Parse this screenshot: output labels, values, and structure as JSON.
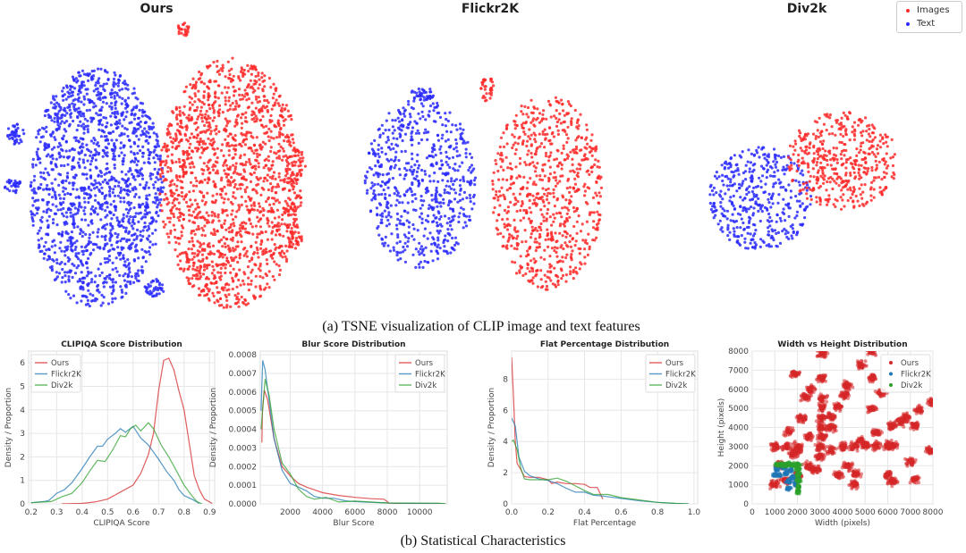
{
  "figure": {
    "caption_a": "(a) TSNE visualization of CLIP image and text features",
    "caption_b": "(b) Statistical Characteristics"
  },
  "colors": {
    "images": "#ff2a2a",
    "text": "#2a2aff",
    "ours": "#d62728",
    "flickr2k": "#1f77b4",
    "div2k": "#2ca02c"
  },
  "tsne": {
    "panels": [
      {
        "title": "Ours"
      },
      {
        "title": "Flickr2K"
      },
      {
        "title": "Div2k"
      }
    ],
    "legend": [
      {
        "label": "Images",
        "color": "#ff2a2a"
      },
      {
        "label": "Text",
        "color": "#2a2aff"
      }
    ]
  },
  "chart_data": [
    {
      "type": "scatter",
      "title": "Ours",
      "subtitle": "TSNE",
      "series": [
        {
          "name": "Images"
        },
        {
          "name": "Text"
        }
      ]
    },
    {
      "type": "scatter",
      "title": "Flickr2K",
      "series": [
        {
          "name": "Images"
        },
        {
          "name": "Text"
        }
      ]
    },
    {
      "type": "scatter",
      "title": "Div2k",
      "series": [
        {
          "name": "Images"
        },
        {
          "name": "Text"
        }
      ],
      "legend": "top-right"
    },
    {
      "type": "line",
      "title": "CLIPIQA Score Distribution",
      "xlabel": "CLIPIQA Score",
      "ylabel": "Density / Proportion",
      "xlim": [
        0.19,
        0.92
      ],
      "ylim": [
        0,
        6.5
      ],
      "xticks": [
        "0.2",
        "0.3",
        "0.4",
        "0.5",
        "0.6",
        "0.7",
        "0.8",
        "0.9"
      ],
      "yticks": [
        "0",
        "1",
        "2",
        "3",
        "4",
        "5",
        "6"
      ],
      "grid": true,
      "legend": "top-left",
      "series": [
        {
          "name": "Ours",
          "color": "#d62728",
          "x": [
            0.32,
            0.4,
            0.45,
            0.5,
            0.55,
            0.6,
            0.63,
            0.66,
            0.68,
            0.7,
            0.72,
            0.74,
            0.76,
            0.78,
            0.8,
            0.82,
            0.84,
            0.86,
            0.88,
            0.91
          ],
          "y": [
            0,
            0.02,
            0.08,
            0.2,
            0.5,
            0.8,
            1.3,
            2.1,
            3.0,
            4.8,
            6.1,
            6.2,
            5.7,
            4.8,
            4.0,
            2.6,
            1.2,
            0.6,
            0.2,
            0.02
          ]
        },
        {
          "name": "Flickr2K",
          "color": "#1f77b4",
          "x": [
            0.2,
            0.25,
            0.27,
            0.3,
            0.33,
            0.36,
            0.4,
            0.43,
            0.46,
            0.48,
            0.5,
            0.53,
            0.55,
            0.57,
            0.6,
            0.63,
            0.66,
            0.7,
            0.73,
            0.76,
            0.78,
            0.8,
            0.83,
            0.86
          ],
          "y": [
            0.05,
            0.1,
            0.15,
            0.45,
            0.6,
            0.9,
            1.5,
            2.0,
            2.45,
            2.45,
            2.75,
            3.0,
            3.2,
            3.05,
            3.3,
            2.8,
            2.5,
            1.9,
            1.4,
            1.0,
            0.6,
            0.35,
            0.2,
            0.02
          ]
        },
        {
          "name": "Div2k",
          "color": "#2ca02c",
          "x": [
            0.2,
            0.25,
            0.28,
            0.32,
            0.36,
            0.4,
            0.43,
            0.46,
            0.49,
            0.52,
            0.55,
            0.57,
            0.59,
            0.61,
            0.63,
            0.66,
            0.68,
            0.71,
            0.74,
            0.77,
            0.8,
            0.83,
            0.85,
            0.87
          ],
          "y": [
            0.05,
            0.08,
            0.1,
            0.3,
            0.45,
            0.9,
            1.4,
            1.85,
            1.8,
            2.3,
            2.9,
            2.85,
            3.2,
            3.35,
            3.1,
            3.45,
            3.2,
            2.5,
            2.0,
            1.4,
            0.8,
            0.35,
            0.1,
            0.0
          ]
        }
      ]
    },
    {
      "type": "line",
      "title": "Blur Score Distribution",
      "xlabel": "Blur Score",
      "ylabel": "Density / Proportion",
      "xlim": [
        150,
        11700
      ],
      "ylim": [
        0,
        0.00082
      ],
      "xticks": [
        "2000",
        "4000",
        "6000",
        "8000",
        "10000"
      ],
      "yticks": [
        "0.0000",
        "0.0001",
        "0.0002",
        "0.0003",
        "0.0004",
        "0.0005",
        "0.0006",
        "0.0007",
        "0.0008"
      ],
      "grid": true,
      "legend": "top-right",
      "series": [
        {
          "name": "Ours",
          "color": "#d62728",
          "x": [
            250,
            280,
            400,
            600,
            1000,
            1500,
            2000,
            2500,
            3000,
            4000,
            5000,
            6000,
            7000,
            7800,
            8100,
            9000,
            11600
          ],
          "y": [
            0.00033,
            0.0005,
            0.00061,
            0.00056,
            0.00035,
            0.0002,
            0.00015,
            0.00011,
            9e-05,
            6e-05,
            4.5e-05,
            3.5e-05,
            2.8e-05,
            2.5e-05,
            5e-06,
            0,
            0
          ]
        },
        {
          "name": "Flickr2K",
          "color": "#1f77b4",
          "x": [
            200,
            300,
            450,
            700,
            1000,
            1500,
            2000,
            2500,
            3000,
            3500,
            4000,
            4700,
            5500,
            6500,
            8000,
            11600
          ],
          "y": [
            0.0005,
            0.00077,
            0.00072,
            0.00055,
            0.00035,
            0.00018,
            0.00011,
            9e-05,
            7e-05,
            4e-05,
            3e-05,
            3e-05,
            1.5e-05,
            1e-05,
            5e-06,
            0
          ]
        },
        {
          "name": "Div2k",
          "color": "#2ca02c",
          "x": [
            200,
            450,
            700,
            1000,
            1500,
            2000,
            2500,
            3000,
            3500,
            4200,
            5000,
            6000,
            8000,
            11200,
            11600
          ],
          "y": [
            0.0004,
            0.00067,
            0.00058,
            0.0004,
            0.00022,
            0.00016,
            8e-05,
            4e-05,
            2.5e-05,
            3.5e-05,
            1e-05,
            1.5e-05,
            5e-06,
            4e-06,
            0
          ]
        }
      ]
    },
    {
      "type": "line",
      "title": "Flat Percentage Distribution",
      "xlabel": "Flat Percentage",
      "ylabel": "Density / Proportion",
      "xlim": [
        0,
        1.02
      ],
      "ylim": [
        0,
        9.8
      ],
      "xticks": [
        "0.0",
        "0.2",
        "0.4",
        "0.6",
        "0.8",
        "1.0"
      ],
      "yticks": [
        "0",
        "2",
        "4",
        "6",
        "8"
      ],
      "grid": true,
      "legend": "top-right",
      "series": [
        {
          "name": "Ours",
          "color": "#d62728",
          "x": [
            0,
            0.01,
            0.02,
            0.03,
            0.05,
            0.07,
            0.1,
            0.15,
            0.2,
            0.22,
            0.25,
            0.3,
            0.35,
            0.4,
            0.43,
            0.47,
            0.5
          ],
          "y": [
            9.4,
            7.0,
            4.0,
            2.6,
            2.2,
            1.75,
            1.7,
            1.7,
            1.55,
            1.3,
            1.4,
            1.3,
            1.3,
            1.25,
            1.05,
            1.05,
            0.3
          ]
        },
        {
          "name": "Flickr2K",
          "color": "#1f77b4",
          "x": [
            0,
            0.02,
            0.04,
            0.07,
            0.1,
            0.15,
            0.2,
            0.25,
            0.3,
            0.35,
            0.4,
            0.45,
            0.5,
            0.6,
            0.7,
            0.8,
            0.9,
            0.97
          ],
          "y": [
            5.5,
            5.0,
            3.0,
            2.1,
            1.8,
            1.6,
            1.5,
            1.3,
            1.0,
            0.75,
            0.75,
            0.55,
            0.5,
            0.35,
            0.2,
            0.1,
            0.03,
            0
          ]
        },
        {
          "name": "Div2k",
          "color": "#2ca02c",
          "x": [
            0,
            0.01,
            0.03,
            0.05,
            0.07,
            0.1,
            0.15,
            0.2,
            0.25,
            0.3,
            0.35,
            0.4,
            0.45,
            0.5,
            0.53,
            0.6,
            0.7,
            0.8,
            0.9,
            0.97
          ],
          "y": [
            4.0,
            4.1,
            3.5,
            2.3,
            1.6,
            1.55,
            1.55,
            1.55,
            1.65,
            1.45,
            1.15,
            0.85,
            0.6,
            0.6,
            0.6,
            0.4,
            0.25,
            0.1,
            0.03,
            0
          ]
        }
      ]
    },
    {
      "type": "scatter",
      "title": "Width vs Height Distribution",
      "xlabel": "Width (pixels)",
      "ylabel": "Height (pixels)",
      "xlim": [
        0,
        8000
      ],
      "ylim": [
        0,
        8000
      ],
      "xticks": [
        "0",
        "1000",
        "2000",
        "3000",
        "4000",
        "5000",
        "6000",
        "7000",
        "8000"
      ],
      "yticks": [
        "0",
        "1000",
        "2000",
        "3000",
        "4000",
        "5000",
        "6000",
        "7000",
        "8000"
      ],
      "grid": true,
      "legend": "top-right",
      "series": [
        {
          "name": "Ours",
          "color": "#d62728",
          "points": [
            [
              1000,
              1000
            ],
            [
              1500,
              1200
            ],
            [
              2000,
              1500
            ],
            [
              2500,
              2000
            ],
            [
              3000,
              2500
            ],
            [
              2000,
              2800
            ],
            [
              2500,
              3500
            ],
            [
              1200,
              2000
            ],
            [
              1800,
              2600
            ],
            [
              3000,
              3000
            ],
            [
              3500,
              2800
            ],
            [
              4000,
              3000
            ],
            [
              4500,
              3000
            ],
            [
              5000,
              3050
            ],
            [
              5500,
              3050
            ],
            [
              6000,
              3050
            ],
            [
              6200,
              3050
            ],
            [
              1000,
              3000
            ],
            [
              1500,
              3000
            ],
            [
              2000,
              3000
            ],
            [
              3100,
              3500
            ],
            [
              3100,
              4000
            ],
            [
              3100,
              4500
            ],
            [
              3100,
              5000
            ],
            [
              3100,
              5500
            ],
            [
              3500,
              4600
            ],
            [
              3800,
              5100
            ],
            [
              4100,
              5700
            ],
            [
              4200,
              6200
            ],
            [
              4800,
              3300
            ],
            [
              5500,
              3700
            ],
            [
              6200,
              4100
            ],
            [
              6800,
              4500
            ],
            [
              7400,
              4900
            ],
            [
              8000,
              5300
            ],
            [
              1900,
              6800
            ],
            [
              3100,
              6600
            ],
            [
              5300,
              8000
            ],
            [
              3100,
              7900
            ],
            [
              4800,
              7300
            ],
            [
              5300,
              6600
            ],
            [
              5700,
              5800
            ],
            [
              6600,
              4300
            ],
            [
              7200,
              4100
            ],
            [
              7900,
              2800
            ],
            [
              6200,
              1200
            ],
            [
              6000,
              1500
            ],
            [
              7200,
              1300
            ],
            [
              7000,
              2200
            ],
            [
              4500,
              1000
            ],
            [
              2600,
              6000
            ],
            [
              2400,
              5600
            ],
            [
              3500,
              4000
            ],
            [
              2200,
              4500
            ],
            [
              4200,
              2000
            ],
            [
              3800,
              1500
            ],
            [
              2800,
              1800
            ],
            [
              1600,
              3800
            ],
            [
              4600,
              1600
            ],
            [
              5300,
              5000
            ]
          ]
        },
        {
          "name": "Flickr2K",
          "color": "#1f77b4",
          "points": [
            [
              1000,
              1500
            ],
            [
              1100,
              1800
            ],
            [
              1300,
              2000
            ],
            [
              1500,
              1600
            ],
            [
              1600,
              800
            ],
            [
              1600,
              1200
            ],
            [
              1800,
              1400
            ],
            [
              2000,
              1300
            ],
            [
              1400,
              1900
            ],
            [
              1700,
              1750
            ],
            [
              1900,
              1050
            ],
            [
              1200,
              1500
            ]
          ]
        },
        {
          "name": "Div2k",
          "color": "#2ca02c",
          "points": [
            [
              1100,
              2050
            ],
            [
              1300,
              2050
            ],
            [
              1500,
              2050
            ],
            [
              1700,
              2050
            ],
            [
              1900,
              2050
            ],
            [
              2040,
              2050
            ],
            [
              2040,
              1800
            ],
            [
              2040,
              1500
            ],
            [
              2040,
              1200
            ],
            [
              2040,
              900
            ],
            [
              2040,
              650
            ]
          ]
        }
      ]
    }
  ]
}
